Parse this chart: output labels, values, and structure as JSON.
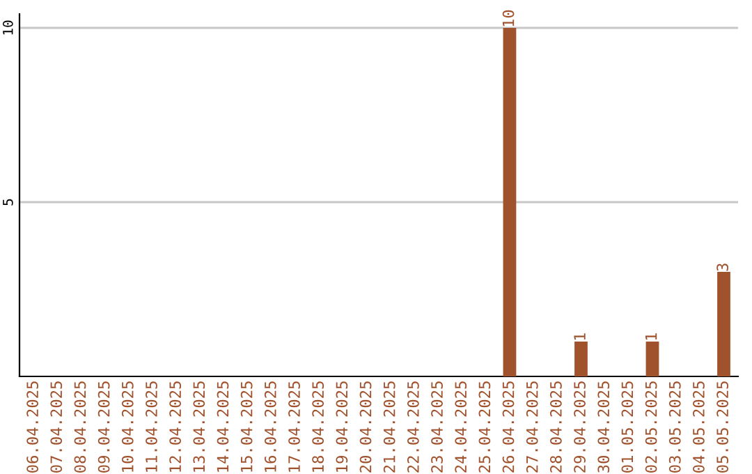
{
  "chart_data": {
    "type": "bar",
    "categories": [
      "06.04.2025",
      "07.04.2025",
      "08.04.2025",
      "09.04.2025",
      "10.04.2025",
      "11.04.2025",
      "12.04.2025",
      "13.04.2025",
      "14.04.2025",
      "15.04.2025",
      "16.04.2025",
      "17.04.2025",
      "18.04.2025",
      "19.04.2025",
      "20.04.2025",
      "21.04.2025",
      "22.04.2025",
      "23.04.2025",
      "24.04.2025",
      "25.04.2025",
      "26.04.2025",
      "27.04.2025",
      "28.04.2025",
      "29.04.2025",
      "30.04.2025",
      "01.05.2025",
      "02.05.2025",
      "03.05.2025",
      "04.05.2025",
      "05.05.2025"
    ],
    "values": [
      0,
      0,
      0,
      0,
      0,
      0,
      0,
      0,
      0,
      0,
      0,
      0,
      0,
      0,
      0,
      0,
      0,
      0,
      0,
      0,
      10,
      0,
      0,
      1,
      0,
      0,
      1,
      0,
      0,
      3
    ],
    "value_labels": [
      null,
      null,
      null,
      null,
      null,
      null,
      null,
      null,
      null,
      null,
      null,
      null,
      null,
      null,
      null,
      null,
      null,
      null,
      null,
      null,
      "10",
      null,
      null,
      "1",
      null,
      null,
      "1",
      null,
      null,
      "3"
    ],
    "color": "#a0522d",
    "ylim": [
      0,
      10.4
    ],
    "yticks": [
      5,
      10
    ],
    "grid": "y"
  }
}
